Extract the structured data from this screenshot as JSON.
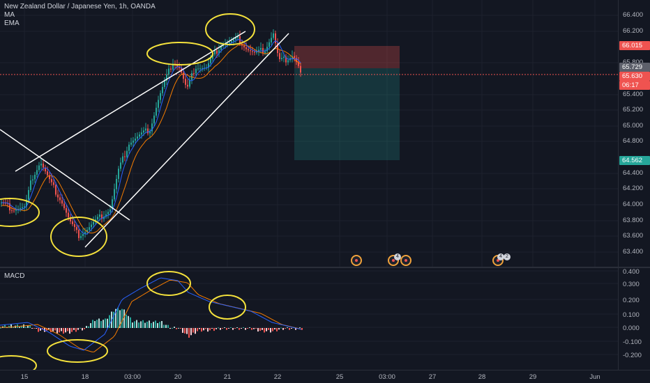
{
  "legend": {
    "symbol": "New Zealand Dollar / Japanese Yen, 1h, OANDA",
    "ma": "MA",
    "ema": "EMA"
  },
  "macd_legend": "MACD",
  "price_axis": [
    "66.400",
    "66.200",
    "65.800",
    "65.400",
    "65.200",
    "65.000",
    "64.800",
    "64.400",
    "64.200",
    "64.000",
    "63.800",
    "63.600",
    "63.400"
  ],
  "price_tags": {
    "stop": "66.015",
    "current": "65.729",
    "last": "65.630",
    "countdown": "06:17",
    "target": "64.562"
  },
  "macd_axis": [
    "0.400",
    "0.300",
    "0.200",
    "0.100",
    "0.000",
    "-0.100",
    "-0.200"
  ],
  "time_axis": [
    "15",
    "18",
    "03:00",
    "20",
    "21",
    "22",
    "25",
    "03:00",
    "27",
    "28",
    "29",
    "Jun"
  ],
  "event_counts": [
    "4",
    "4",
    "2"
  ],
  "colors": {
    "up": "#26a69a",
    "down": "#ef5350",
    "ma": "#2962ff",
    "ema": "#f57c00",
    "annotation": "#f5e23c",
    "trendline": "#ffffff"
  }
}
